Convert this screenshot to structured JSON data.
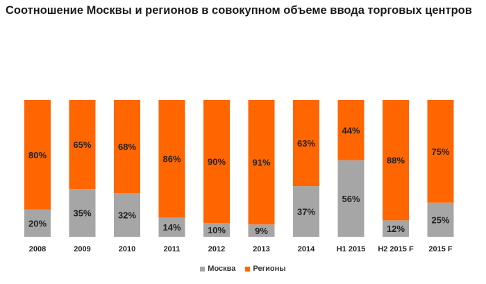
{
  "chart_data": {
    "type": "bar",
    "stacked": true,
    "title": "Соотношение Москвы и регионов в совокупном объеме ввода торговых центров",
    "categories": [
      "2008",
      "2009",
      "2010",
      "2011",
      "2012",
      "2013",
      "2014",
      "H1 2015",
      "H2 2015  F",
      "2015 F"
    ],
    "series": [
      {
        "name": "Москва",
        "color": "#a6a6a6",
        "values": [
          20,
          35,
          32,
          14,
          10,
          9,
          37,
          56,
          12,
          25
        ],
        "labels": [
          "20%",
          "35%",
          "32%",
          "14%",
          "10%",
          "9%",
          "37%",
          "56%",
          "12%",
          "25%"
        ]
      },
      {
        "name": "Регионы",
        "color": "#ff6600",
        "values": [
          80,
          65,
          68,
          86,
          90,
          91,
          63,
          44,
          88,
          75
        ],
        "labels": [
          "80%",
          "65%",
          "68%",
          "86%",
          "90%",
          "91%",
          "63%",
          "44%",
          "88%",
          "75%"
        ]
      }
    ],
    "ylim": [
      0,
      100
    ],
    "legend_position": "bottom-center",
    "grid": false
  }
}
